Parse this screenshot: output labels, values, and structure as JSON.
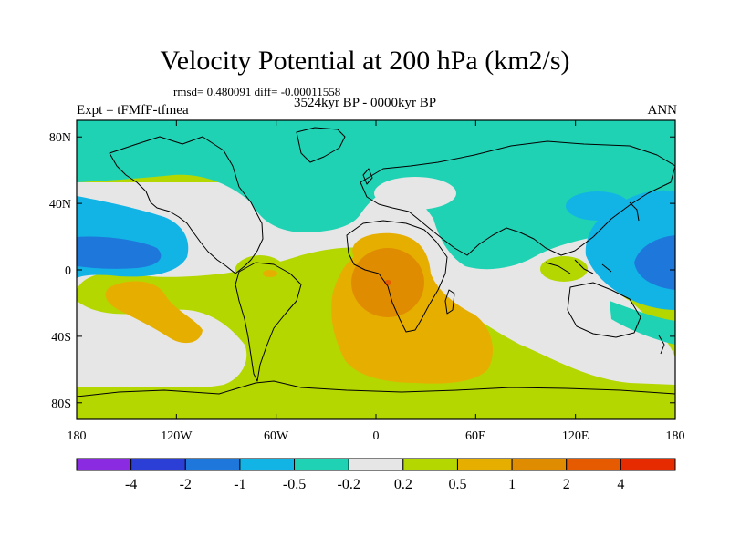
{
  "title": "Velocity Potential at 200 hPa (km2/s)",
  "stats": "rmsd= 0.480091 diff= -0.00011558",
  "left_label": "Expt = tFMfF-tfmea",
  "center_label": "3524kyr BP - 0000kyr BP",
  "right_label": "ANN",
  "map": {
    "projection": "cylindrical-equidistant",
    "lon_range": [
      -180,
      180
    ],
    "lat_range": [
      -90,
      90
    ],
    "lat_ticks": [
      {
        "v": 80,
        "label": "80N"
      },
      {
        "v": 40,
        "label": "40N"
      },
      {
        "v": 0,
        "label": "0"
      },
      {
        "v": -40,
        "label": "40S"
      },
      {
        "v": -80,
        "label": "80S"
      }
    ],
    "lon_ticks": [
      {
        "v": -180,
        "label": "180"
      },
      {
        "v": -120,
        "label": "120W"
      },
      {
        "v": -60,
        "label": "60W"
      },
      {
        "v": 0,
        "label": "0"
      },
      {
        "v": 60,
        "label": "60E"
      },
      {
        "v": 120,
        "label": "120E"
      },
      {
        "v": 180,
        "label": "180"
      }
    ]
  },
  "colorbar": {
    "colors": [
      "#8a2be2",
      "#2b3fd6",
      "#1e78dc",
      "#12b4e6",
      "#20d2b4",
      "#e6e6e6",
      "#b4d700",
      "#e6af00",
      "#e08c00",
      "#e65a00",
      "#e62b00"
    ],
    "labels": [
      "-4",
      "-2",
      "-1",
      "-0.5",
      "-0.2",
      "0.2",
      "0.5",
      "1",
      "2",
      "4"
    ]
  }
}
